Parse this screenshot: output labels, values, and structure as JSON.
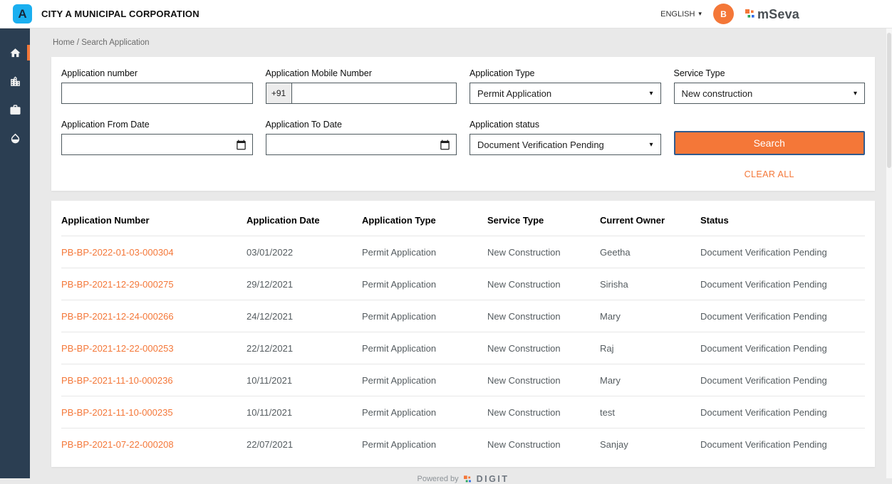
{
  "header": {
    "logo_letter": "A",
    "title": "CITY A MUNICIPAL CORPORATION",
    "language": "ENGLISH",
    "caret": "▾",
    "avatar_letter": "B",
    "brand": "mSeva"
  },
  "breadcrumb": "Home / Search Application",
  "search_form": {
    "application_number_label": "Application number",
    "mobile_label": "Application Mobile Number",
    "mobile_prefix": "+91",
    "application_type_label": "Application Type",
    "application_type_value": "Permit Application",
    "service_type_label": "Service Type",
    "service_type_value": "New construction",
    "from_date_label": "Application From Date",
    "to_date_label": "Application To Date",
    "status_label": "Application status",
    "status_value": "Document Verification Pending",
    "search_label": "Search",
    "clear_all_label": "CLEAR ALL",
    "select_caret": "▾"
  },
  "table": {
    "columns": [
      "Application Number",
      "Application Date",
      "Application Type",
      "Service Type",
      "Current Owner",
      "Status"
    ],
    "rows": [
      [
        "PB-BP-2022-01-03-000304",
        "03/01/2022",
        "Permit Application",
        "New Construction",
        "Geetha",
        "Document Verification Pending"
      ],
      [
        "PB-BP-2021-12-29-000275",
        "29/12/2021",
        "Permit Application",
        "New Construction",
        "Sirisha",
        "Document Verification Pending"
      ],
      [
        "PB-BP-2021-12-24-000266",
        "24/12/2021",
        "Permit Application",
        "New Construction",
        "Mary",
        "Document Verification Pending"
      ],
      [
        "PB-BP-2021-12-22-000253",
        "22/12/2021",
        "Permit Application",
        "New Construction",
        "Raj",
        "Document Verification Pending"
      ],
      [
        "PB-BP-2021-11-10-000236",
        "10/11/2021",
        "Permit Application",
        "New Construction",
        "Mary",
        "Document Verification Pending"
      ],
      [
        "PB-BP-2021-11-10-000235",
        "10/11/2021",
        "Permit Application",
        "New Construction",
        "test",
        "Document Verification Pending"
      ],
      [
        "PB-BP-2021-07-22-000208",
        "22/07/2021",
        "Permit Application",
        "New Construction",
        "Sanjay",
        "Document Verification Pending"
      ]
    ]
  },
  "footer": {
    "powered_by": "Powered by",
    "brand": "DIGIT"
  },
  "colors": {
    "accent": "#f47738",
    "sidebar": "#2b3e52",
    "city_logo_blue": "#1aaff0"
  }
}
